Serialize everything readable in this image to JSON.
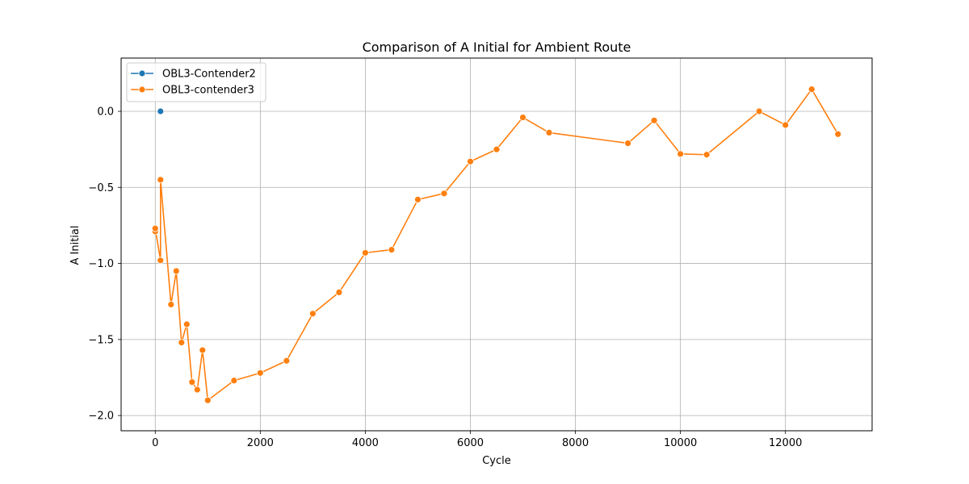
{
  "chart_data": {
    "type": "line",
    "title": "Comparison of A Initial for Ambient Route",
    "xlabel": "Cycle",
    "ylabel": "A Initial",
    "xlim": [
      -650,
      13650
    ],
    "ylim": [
      -2.1,
      0.35
    ],
    "xticks": [
      0,
      2000,
      4000,
      6000,
      8000,
      10000,
      12000
    ],
    "yticks": [
      -2.0,
      -1.5,
      -1.0,
      -0.5,
      0.0
    ],
    "xtick_labels": [
      "0",
      "2000",
      "4000",
      "6000",
      "8000",
      "10000",
      "12000"
    ],
    "ytick_labels": [
      "−2.0",
      "−1.5",
      "−1.0",
      "−0.5",
      "0.0"
    ],
    "grid": true,
    "legend_position": "top-left",
    "series": [
      {
        "name": "OBL3-Contender2",
        "color": "#1f77b4",
        "x": [
          100
        ],
        "y": [
          0.0
        ]
      },
      {
        "name": "OBL3-contender3",
        "color": "#ff7f0e",
        "x": [
          0,
          0,
          100,
          100,
          300,
          400,
          500,
          600,
          700,
          800,
          900,
          1000,
          1500,
          2000,
          2500,
          3000,
          3500,
          4000,
          4500,
          5000,
          5500,
          6000,
          6500,
          7000,
          7500,
          9000,
          9500,
          10000,
          10500,
          11500,
          12000,
          12500,
          13000
        ],
        "y": [
          -0.79,
          -0.77,
          -0.98,
          -0.45,
          -1.27,
          -1.05,
          -1.52,
          -1.4,
          -1.78,
          -1.83,
          -1.57,
          -1.9,
          -1.77,
          -1.72,
          -1.64,
          -1.33,
          -1.19,
          -0.93,
          -0.91,
          -0.58,
          -0.54,
          -0.33,
          -0.25,
          -0.04,
          -0.14,
          -0.21,
          -0.06,
          -0.28,
          -0.285,
          0.0,
          -0.09,
          0.145,
          -0.15
        ]
      }
    ]
  }
}
